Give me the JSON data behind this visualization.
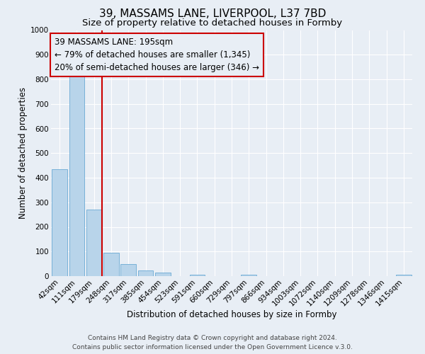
{
  "title": "39, MASSAMS LANE, LIVERPOOL, L37 7BD",
  "subtitle": "Size of property relative to detached houses in Formby",
  "xlabel": "Distribution of detached houses by size in Formby",
  "ylabel": "Number of detached properties",
  "bar_labels": [
    "42sqm",
    "111sqm",
    "179sqm",
    "248sqm",
    "317sqm",
    "385sqm",
    "454sqm",
    "523sqm",
    "591sqm",
    "660sqm",
    "729sqm",
    "797sqm",
    "866sqm",
    "934sqm",
    "1003sqm",
    "1072sqm",
    "1140sqm",
    "1209sqm",
    "1278sqm",
    "1346sqm",
    "1415sqm"
  ],
  "bar_values": [
    435,
    820,
    270,
    95,
    50,
    22,
    13,
    0,
    5,
    0,
    0,
    5,
    0,
    0,
    0,
    0,
    0,
    0,
    0,
    0,
    5
  ],
  "bar_color": "#b8d4ea",
  "bar_edge_color": "#6aaad4",
  "vline_color": "#cc0000",
  "annotation_title": "39 MASSAMS LANE: 195sqm",
  "annotation_line1": "← 79% of detached houses are smaller (1,345)",
  "annotation_line2": "20% of semi-detached houses are larger (346) →",
  "annotation_box_color": "#cc0000",
  "ylim": [
    0,
    1000
  ],
  "yticks": [
    0,
    100,
    200,
    300,
    400,
    500,
    600,
    700,
    800,
    900,
    1000
  ],
  "footer_line1": "Contains HM Land Registry data © Crown copyright and database right 2024.",
  "footer_line2": "Contains public sector information licensed under the Open Government Licence v.3.0.",
  "background_color": "#e8eef5",
  "grid_color": "#d0d8e8",
  "title_fontsize": 11,
  "subtitle_fontsize": 9.5,
  "axis_label_fontsize": 8.5,
  "tick_fontsize": 7.5,
  "annotation_fontsize": 8.5,
  "footer_fontsize": 6.5
}
